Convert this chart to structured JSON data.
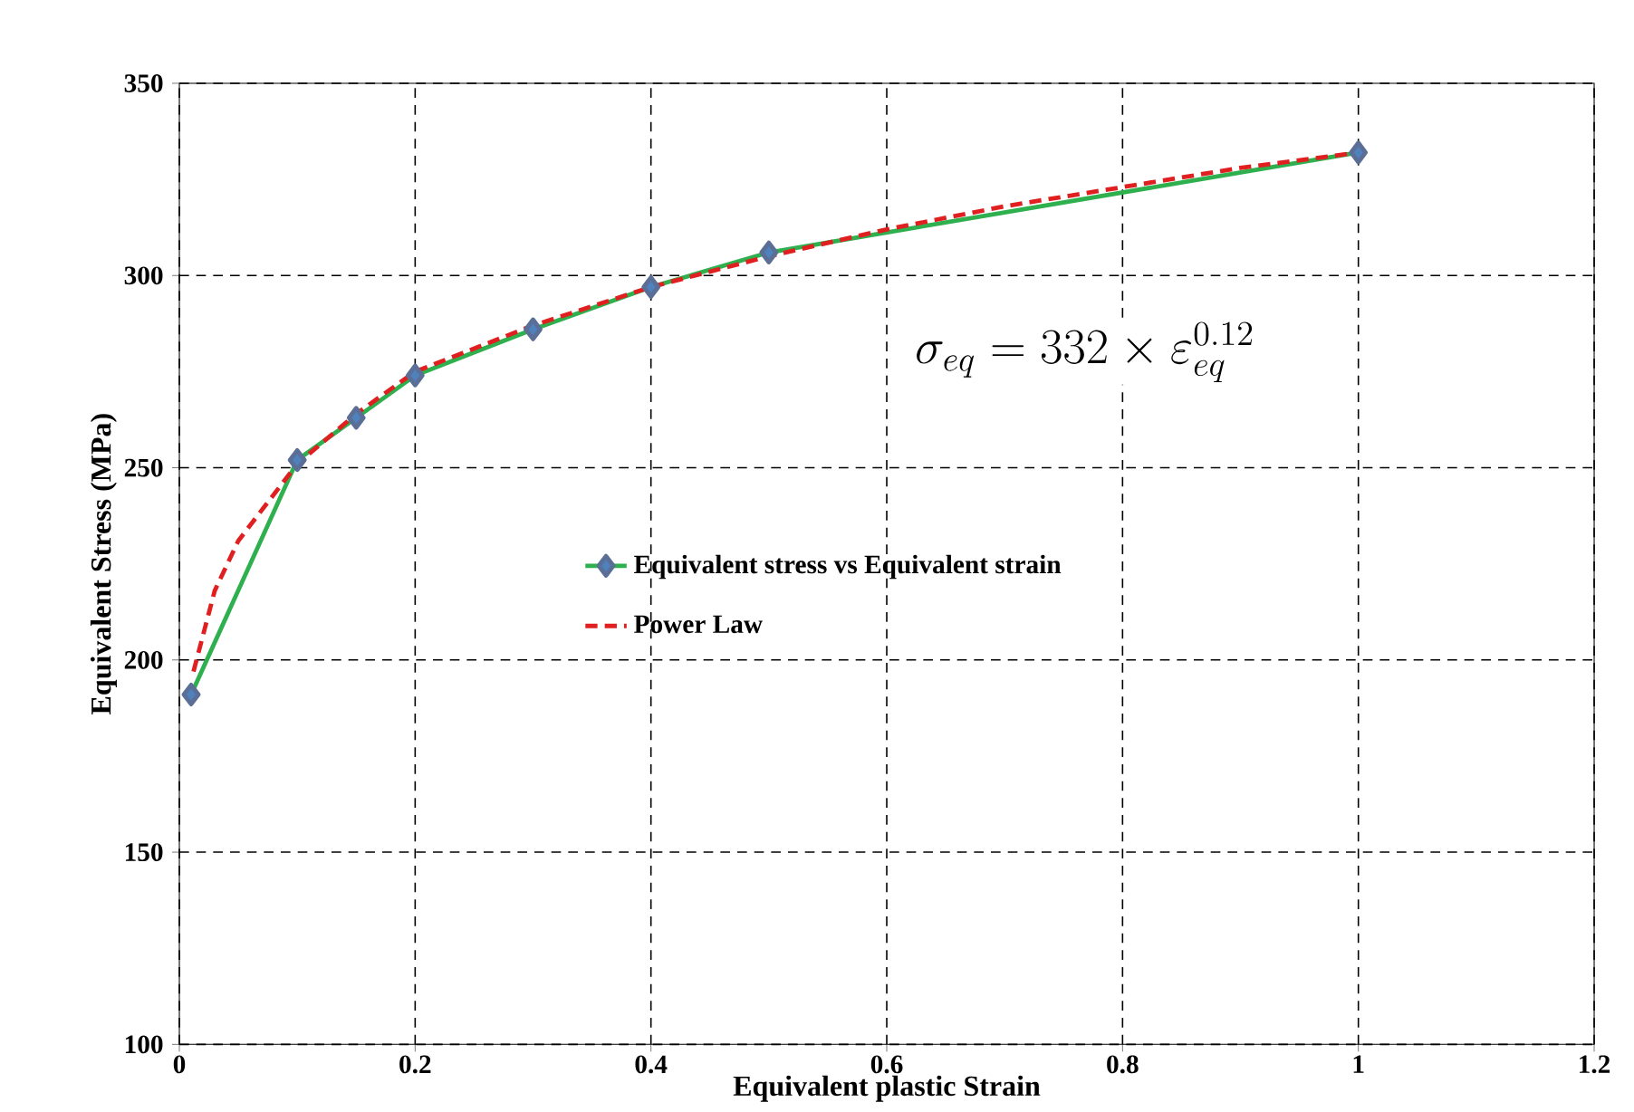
{
  "chart_data": {
    "type": "line",
    "xlabel": "Equivalent plastic Strain",
    "ylabel": "Equivalent Stress (MPa)",
    "xlim": [
      0,
      1.2
    ],
    "xticks": [
      0,
      0.2,
      0.4,
      0.6,
      0.8,
      1,
      1.2
    ],
    "ylim": [
      100,
      350
    ],
    "yticks": [
      100,
      150,
      200,
      250,
      300,
      350
    ],
    "grid": true,
    "legend": "left",
    "annotations": [
      "\\sigma_{eq} = 332\\times\\varepsilon_{eq}^{0.12}"
    ],
    "series": [
      {
        "name": "Equivalent stress vs Equivalent strain",
        "color": "#2eb04e",
        "marker": "diamond",
        "line_style": "solid",
        "x": [
          0.01,
          0.1,
          0.15,
          0.2,
          0.3,
          0.4,
          0.5,
          1
        ],
        "values": [
          191,
          252,
          263,
          274,
          286,
          297,
          306,
          332
        ]
      },
      {
        "name": "Power Law",
        "color": "#e02020",
        "marker": "none",
        "line_style": "dashed",
        "x": [
          0.012,
          0.03,
          0.05,
          0.1,
          0.15,
          0.2,
          0.3,
          0.4,
          0.5,
          0.6,
          0.7,
          0.8,
          0.9,
          1
        ],
        "values": [
          197,
          218,
          231,
          251,
          264,
          275,
          287,
          297,
          305,
          312,
          318,
          323,
          328,
          332
        ]
      }
    ]
  }
}
